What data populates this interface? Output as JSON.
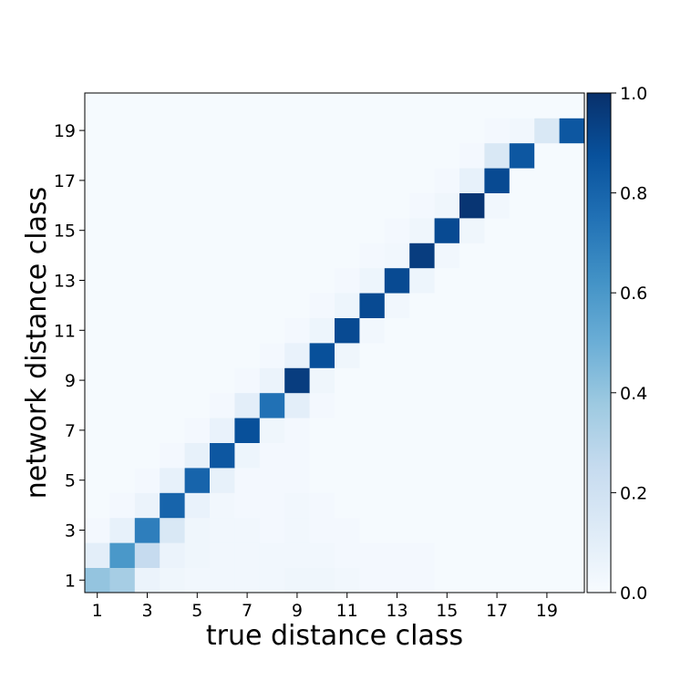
{
  "chart_data": {
    "type": "heatmap",
    "xlabel": "true distance class",
    "ylabel": "network distance class",
    "x_categories": [
      1,
      2,
      3,
      4,
      5,
      6,
      7,
      8,
      9,
      10,
      11,
      12,
      13,
      14,
      15,
      16,
      17,
      18,
      19,
      20
    ],
    "y_categories": [
      1,
      2,
      3,
      4,
      5,
      6,
      7,
      8,
      9,
      10,
      11,
      12,
      13,
      14,
      15,
      16,
      17,
      18,
      19,
      20
    ],
    "x_tick_labels": [
      "1",
      "3",
      "5",
      "7",
      "9",
      "11",
      "13",
      "15",
      "17",
      "19"
    ],
    "y_tick_labels": [
      "1",
      "3",
      "5",
      "7",
      "9",
      "11",
      "13",
      "15",
      "17",
      "19"
    ],
    "colormap": "Blues",
    "colors": {
      "low": "#f7fbff",
      "high": "#08306b"
    },
    "colorbar": {
      "range": [
        0.0,
        1.0
      ],
      "tick_values": [
        0.0,
        0.2,
        0.4,
        0.6,
        0.8,
        1.0
      ],
      "tick_labels": [
        "0.0",
        "0.2",
        "0.4",
        "0.6",
        "0.8",
        "1.0"
      ]
    },
    "values": [
      [
        0.4,
        0.35,
        0.06,
        0.04,
        0.03,
        0.03,
        0.03,
        0.03,
        0.04,
        0.04,
        0.03,
        0.02,
        0.02,
        0.02,
        0.01,
        0.01,
        0.01,
        0.01,
        0.01,
        0.01
      ],
      [
        0.1,
        0.6,
        0.25,
        0.06,
        0.04,
        0.03,
        0.03,
        0.03,
        0.03,
        0.03,
        0.02,
        0.02,
        0.02,
        0.02,
        0.01,
        0.01,
        0.01,
        0.01,
        0.01,
        0.01
      ],
      [
        0.02,
        0.08,
        0.7,
        0.15,
        0.04,
        0.03,
        0.03,
        0.02,
        0.03,
        0.02,
        0.02,
        0.01,
        0.01,
        0.01,
        0.01,
        0.01,
        0.01,
        0.01,
        0.01,
        0.01
      ],
      [
        0.01,
        0.02,
        0.06,
        0.8,
        0.07,
        0.03,
        0.02,
        0.02,
        0.03,
        0.02,
        0.01,
        0.01,
        0.01,
        0.01,
        0.01,
        0.01,
        0.01,
        0.01,
        0.01,
        0.01
      ],
      [
        0.01,
        0.01,
        0.02,
        0.08,
        0.8,
        0.08,
        0.02,
        0.02,
        0.02,
        0.01,
        0.01,
        0.01,
        0.01,
        0.01,
        0.01,
        0.01,
        0.01,
        0.01,
        0.01,
        0.01
      ],
      [
        0.01,
        0.01,
        0.01,
        0.02,
        0.08,
        0.85,
        0.05,
        0.02,
        0.02,
        0.01,
        0.01,
        0.01,
        0.01,
        0.01,
        0.01,
        0.01,
        0.01,
        0.01,
        0.01,
        0.01
      ],
      [
        0.01,
        0.01,
        0.01,
        0.01,
        0.02,
        0.07,
        0.88,
        0.04,
        0.02,
        0.01,
        0.01,
        0.01,
        0.01,
        0.01,
        0.01,
        0.01,
        0.01,
        0.01,
        0.01,
        0.01
      ],
      [
        0.01,
        0.01,
        0.01,
        0.01,
        0.01,
        0.02,
        0.1,
        0.75,
        0.1,
        0.02,
        0.01,
        0.01,
        0.01,
        0.01,
        0.01,
        0.01,
        0.01,
        0.01,
        0.01,
        0.01
      ],
      [
        0.01,
        0.01,
        0.01,
        0.01,
        0.01,
        0.01,
        0.02,
        0.06,
        0.95,
        0.04,
        0.01,
        0.01,
        0.01,
        0.01,
        0.01,
        0.01,
        0.01,
        0.01,
        0.01,
        0.01
      ],
      [
        0.01,
        0.01,
        0.01,
        0.01,
        0.01,
        0.01,
        0.01,
        0.02,
        0.07,
        0.88,
        0.04,
        0.01,
        0.01,
        0.01,
        0.01,
        0.01,
        0.01,
        0.01,
        0.01,
        0.01
      ],
      [
        0.01,
        0.01,
        0.01,
        0.01,
        0.01,
        0.01,
        0.01,
        0.01,
        0.02,
        0.05,
        0.9,
        0.03,
        0.01,
        0.01,
        0.01,
        0.01,
        0.01,
        0.01,
        0.01,
        0.01
      ],
      [
        0.01,
        0.01,
        0.01,
        0.01,
        0.01,
        0.01,
        0.01,
        0.01,
        0.01,
        0.02,
        0.05,
        0.9,
        0.03,
        0.01,
        0.01,
        0.01,
        0.01,
        0.01,
        0.01,
        0.01
      ],
      [
        0.01,
        0.01,
        0.01,
        0.01,
        0.01,
        0.01,
        0.01,
        0.01,
        0.01,
        0.01,
        0.02,
        0.05,
        0.9,
        0.05,
        0.01,
        0.01,
        0.01,
        0.01,
        0.01,
        0.01
      ],
      [
        0.01,
        0.01,
        0.01,
        0.01,
        0.01,
        0.01,
        0.01,
        0.01,
        0.01,
        0.01,
        0.01,
        0.02,
        0.03,
        0.95,
        0.03,
        0.01,
        0.01,
        0.01,
        0.01,
        0.01
      ],
      [
        0.01,
        0.01,
        0.01,
        0.01,
        0.01,
        0.01,
        0.01,
        0.01,
        0.01,
        0.01,
        0.01,
        0.01,
        0.02,
        0.04,
        0.9,
        0.04,
        0.01,
        0.01,
        0.01,
        0.01
      ],
      [
        0.01,
        0.01,
        0.01,
        0.01,
        0.01,
        0.01,
        0.01,
        0.01,
        0.01,
        0.01,
        0.01,
        0.01,
        0.01,
        0.02,
        0.04,
        0.98,
        0.03,
        0.01,
        0.01,
        0.01
      ],
      [
        0.01,
        0.01,
        0.01,
        0.01,
        0.01,
        0.01,
        0.01,
        0.01,
        0.01,
        0.01,
        0.01,
        0.01,
        0.01,
        0.01,
        0.02,
        0.08,
        0.9,
        0.01,
        0.01,
        0.01
      ],
      [
        0.01,
        0.01,
        0.01,
        0.01,
        0.01,
        0.01,
        0.01,
        0.01,
        0.01,
        0.01,
        0.01,
        0.01,
        0.01,
        0.01,
        0.01,
        0.02,
        0.15,
        0.85,
        0.01,
        0.01
      ],
      [
        0.01,
        0.01,
        0.01,
        0.01,
        0.01,
        0.01,
        0.01,
        0.01,
        0.01,
        0.01,
        0.01,
        0.01,
        0.01,
        0.01,
        0.01,
        0.01,
        0.02,
        0.03,
        0.15,
        0.85
      ],
      [
        0.01,
        0.01,
        0.01,
        0.01,
        0.01,
        0.01,
        0.01,
        0.01,
        0.01,
        0.01,
        0.01,
        0.01,
        0.01,
        0.01,
        0.01,
        0.01,
        0.01,
        0.01,
        0.01,
        0.01
      ]
    ]
  }
}
